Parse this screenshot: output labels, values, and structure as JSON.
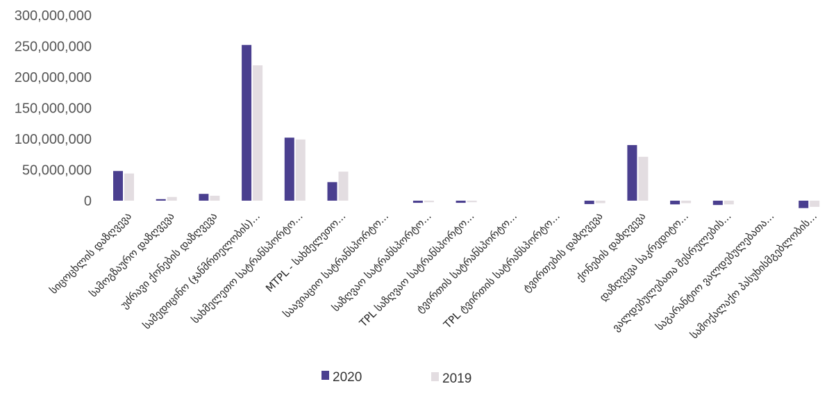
{
  "chart_data": {
    "type": "bar",
    "categories": [
      "სიცოცხლის დაზღვევა",
      "სამოგზაურო დაზღვევა",
      "უძრავი ქონების დაზღვევა",
      "სამედიცინო (ჯანმრთელობის)...",
      "სახმელეთო სატრანსპორტო...",
      "MTPL - სახმელეთო...",
      "საავიაციო სატრანსპორტო...",
      "საზღვაო სატრანსპორტო...",
      "TPL საზღვაო სატრანსპორტო...",
      "ტვირთის სატრანსპორტო...",
      "TPL ტვირთის სატრანსპორტო...",
      "ტვირთების დაზღვევა",
      "ქონების დაზღვევა",
      "დაზღვევა საკრედიტო...",
      "ვალდებულებათა შესრულების...",
      "საგარანტიო ვალდებულებათა...",
      "სამოქალაქო პასუხისმგებლობის..."
    ],
    "series": [
      {
        "name": "2020",
        "color": "#4a3f8f",
        "values": [
          48000000,
          2500000,
          11000000,
          252000000,
          102000000,
          30000000,
          0,
          -3500000,
          -3500000,
          0,
          0,
          -5500000,
          90000000,
          -6000000,
          -7000000,
          0,
          -12000000
        ]
      },
      {
        "name": "2019",
        "color": "#e3dde1",
        "values": [
          44000000,
          6000000,
          8000000,
          219000000,
          99000000,
          47000000,
          0,
          -2500000,
          -2500000,
          0,
          0,
          -4000000,
          71000000,
          -4000000,
          -6000000,
          0,
          -10000000
        ]
      }
    ],
    "yticks": [
      "300,000,000",
      "250,000,000",
      "200,000,000",
      "150,000,000",
      "100,000,000",
      "50,000,000",
      "0"
    ],
    "ylim": [
      0,
      300000000
    ],
    "grid": false,
    "legend": {
      "position": "bottom",
      "items": [
        "2020",
        "2019"
      ]
    }
  }
}
